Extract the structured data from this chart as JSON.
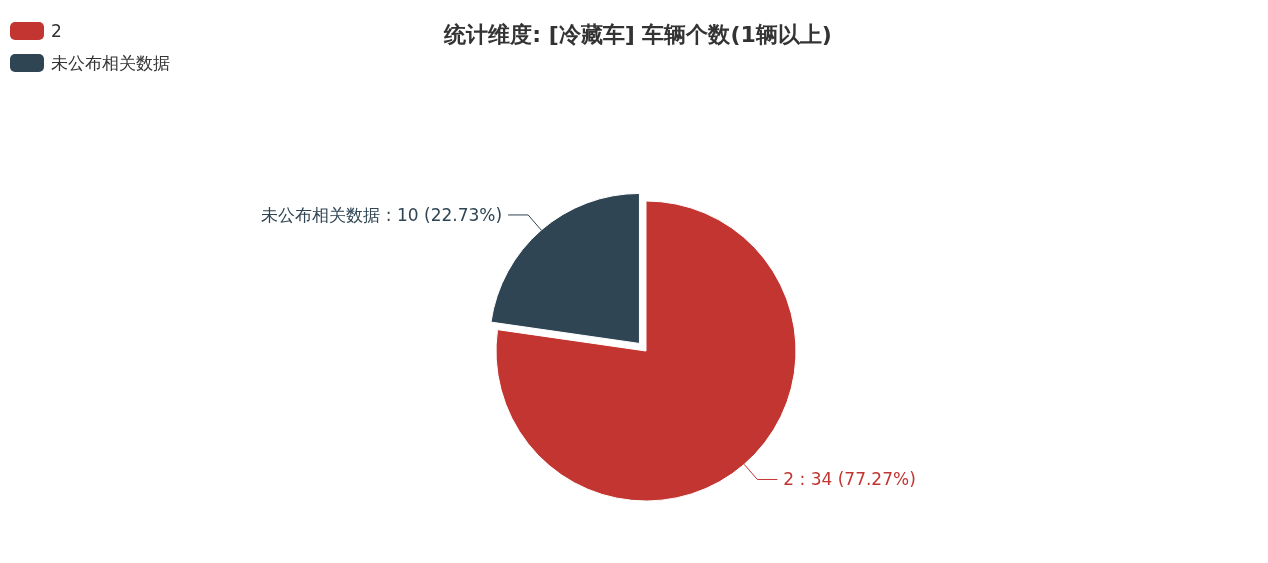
{
  "chart_data": {
    "type": "pie",
    "title": "统计维度: [冷藏车] 车辆个数(1辆以上)",
    "categories": [
      "2",
      "未公布相关数据"
    ],
    "values": [
      34,
      10
    ],
    "colors": [
      "#c23531",
      "#2f4554"
    ],
    "value_labels": [
      "2 : 34 (77.27%)",
      "未公布相关数据 : 10 (22.73%)"
    ],
    "legend": "top left"
  }
}
